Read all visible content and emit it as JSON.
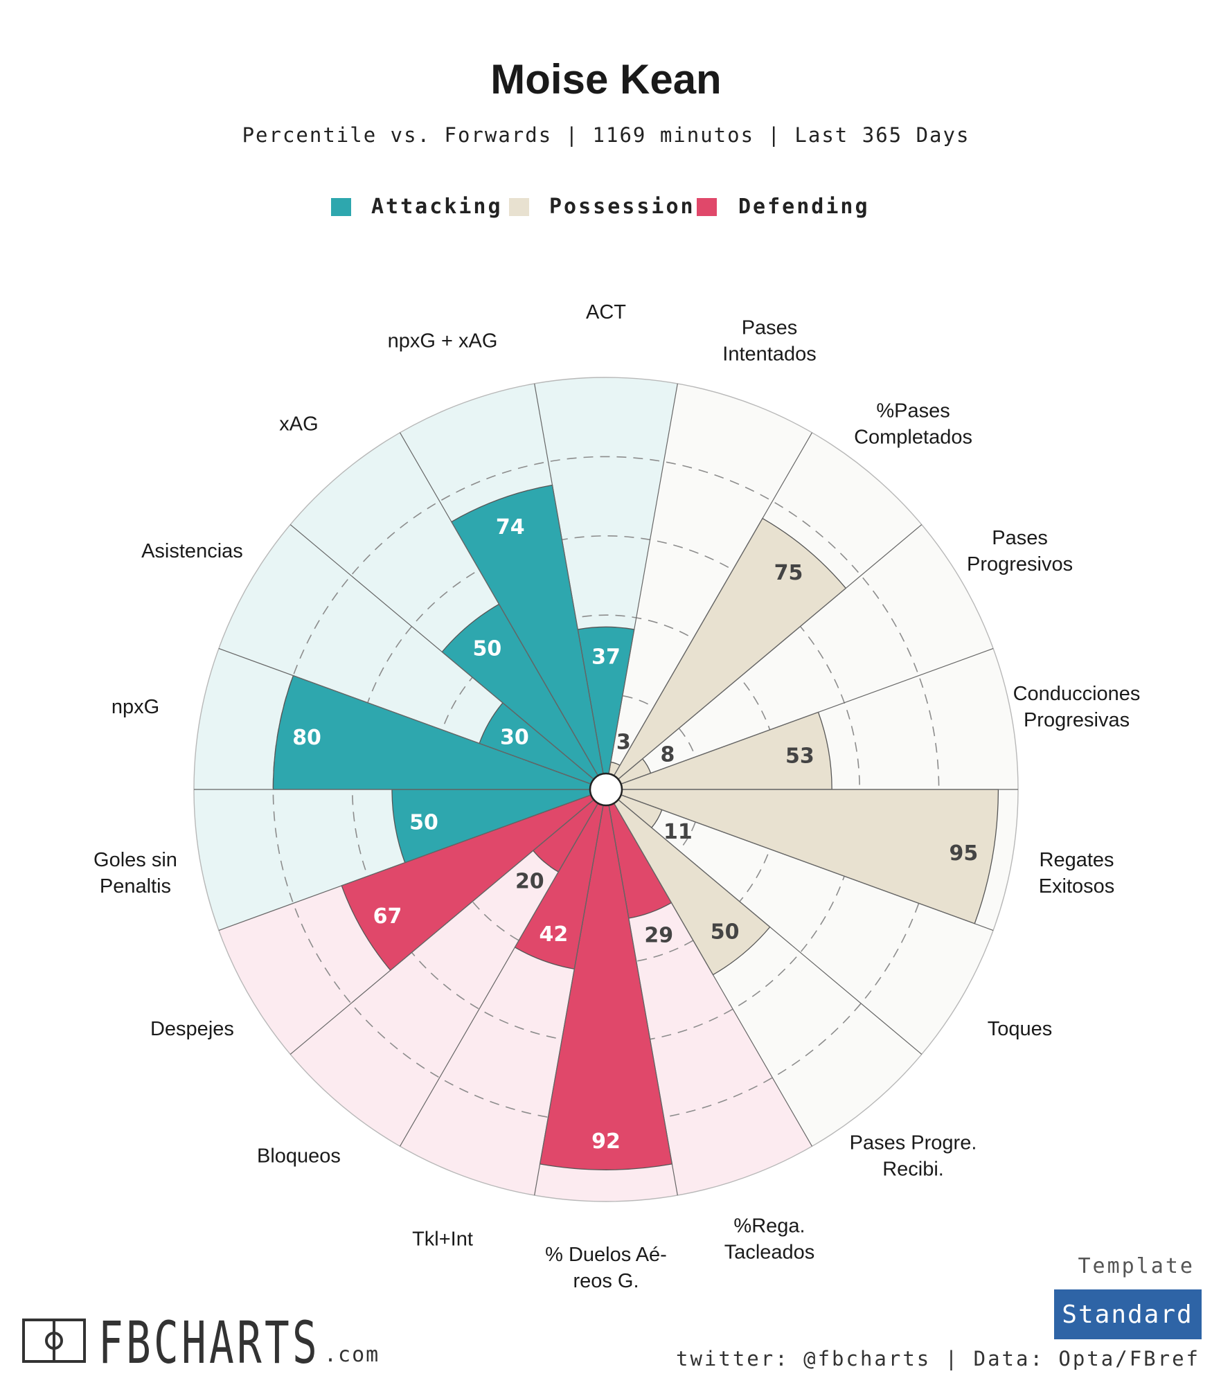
{
  "chart_data": {
    "type": "radial-bar",
    "title": "Moise Kean",
    "subtitle": "Percentile vs. Forwards | 1169 minutos | Last 365 Days",
    "rlim": [
      0,
      100
    ],
    "legend": [
      {
        "name": "Attacking",
        "color": "#2ea7ae"
      },
      {
        "name": "Possession",
        "color": "#e8e1d0"
      },
      {
        "name": "Defending",
        "color": "#e0486a"
      }
    ],
    "categories": [
      {
        "label": "ACT",
        "value": 37,
        "group": "Attacking"
      },
      {
        "label": "Pases Intentados",
        "value": 3,
        "group": "Possession"
      },
      {
        "label": "%Pases Completados",
        "value": 75,
        "group": "Possession"
      },
      {
        "label": "Pases Progresivos",
        "value": 8,
        "group": "Possession"
      },
      {
        "label": "Conducciones Progresivas",
        "value": 53,
        "group": "Possession"
      },
      {
        "label": "Regates Exitosos",
        "value": 95,
        "group": "Possession"
      },
      {
        "label": "Toques",
        "value": 11,
        "group": "Possession"
      },
      {
        "label": "Pases Progre. Recibi.",
        "value": 50,
        "group": "Possession"
      },
      {
        "label": "%Rega. Tacleados",
        "value": 29,
        "group": "Defending"
      },
      {
        "label": "% Duelos Aé-reos G.",
        "value": 92,
        "group": "Defending"
      },
      {
        "label": "Tkl+Int",
        "value": 42,
        "group": "Defending"
      },
      {
        "label": "Bloqueos",
        "value": 20,
        "group": "Defending"
      },
      {
        "label": "Despejes",
        "value": 67,
        "group": "Defending"
      },
      {
        "label": "Goles sin Penaltis",
        "value": 50,
        "group": "Attacking"
      },
      {
        "label": "npxG",
        "value": 80,
        "group": "Attacking"
      },
      {
        "label": "Asistencias",
        "value": 30,
        "group": "Attacking"
      },
      {
        "label": "xAG",
        "value": 50,
        "group": "Attacking"
      },
      {
        "label": "npxG + xAG",
        "value": 74,
        "group": "Attacking"
      }
    ]
  },
  "branding": {
    "logo_text": "FBCHARTS",
    "logo_suffix": ".com",
    "template_label": "Template",
    "template_value": "Standard",
    "credits": "twitter: @fbcharts | Data: Opta/FBref",
    "brand_color": "#2e64a6"
  }
}
